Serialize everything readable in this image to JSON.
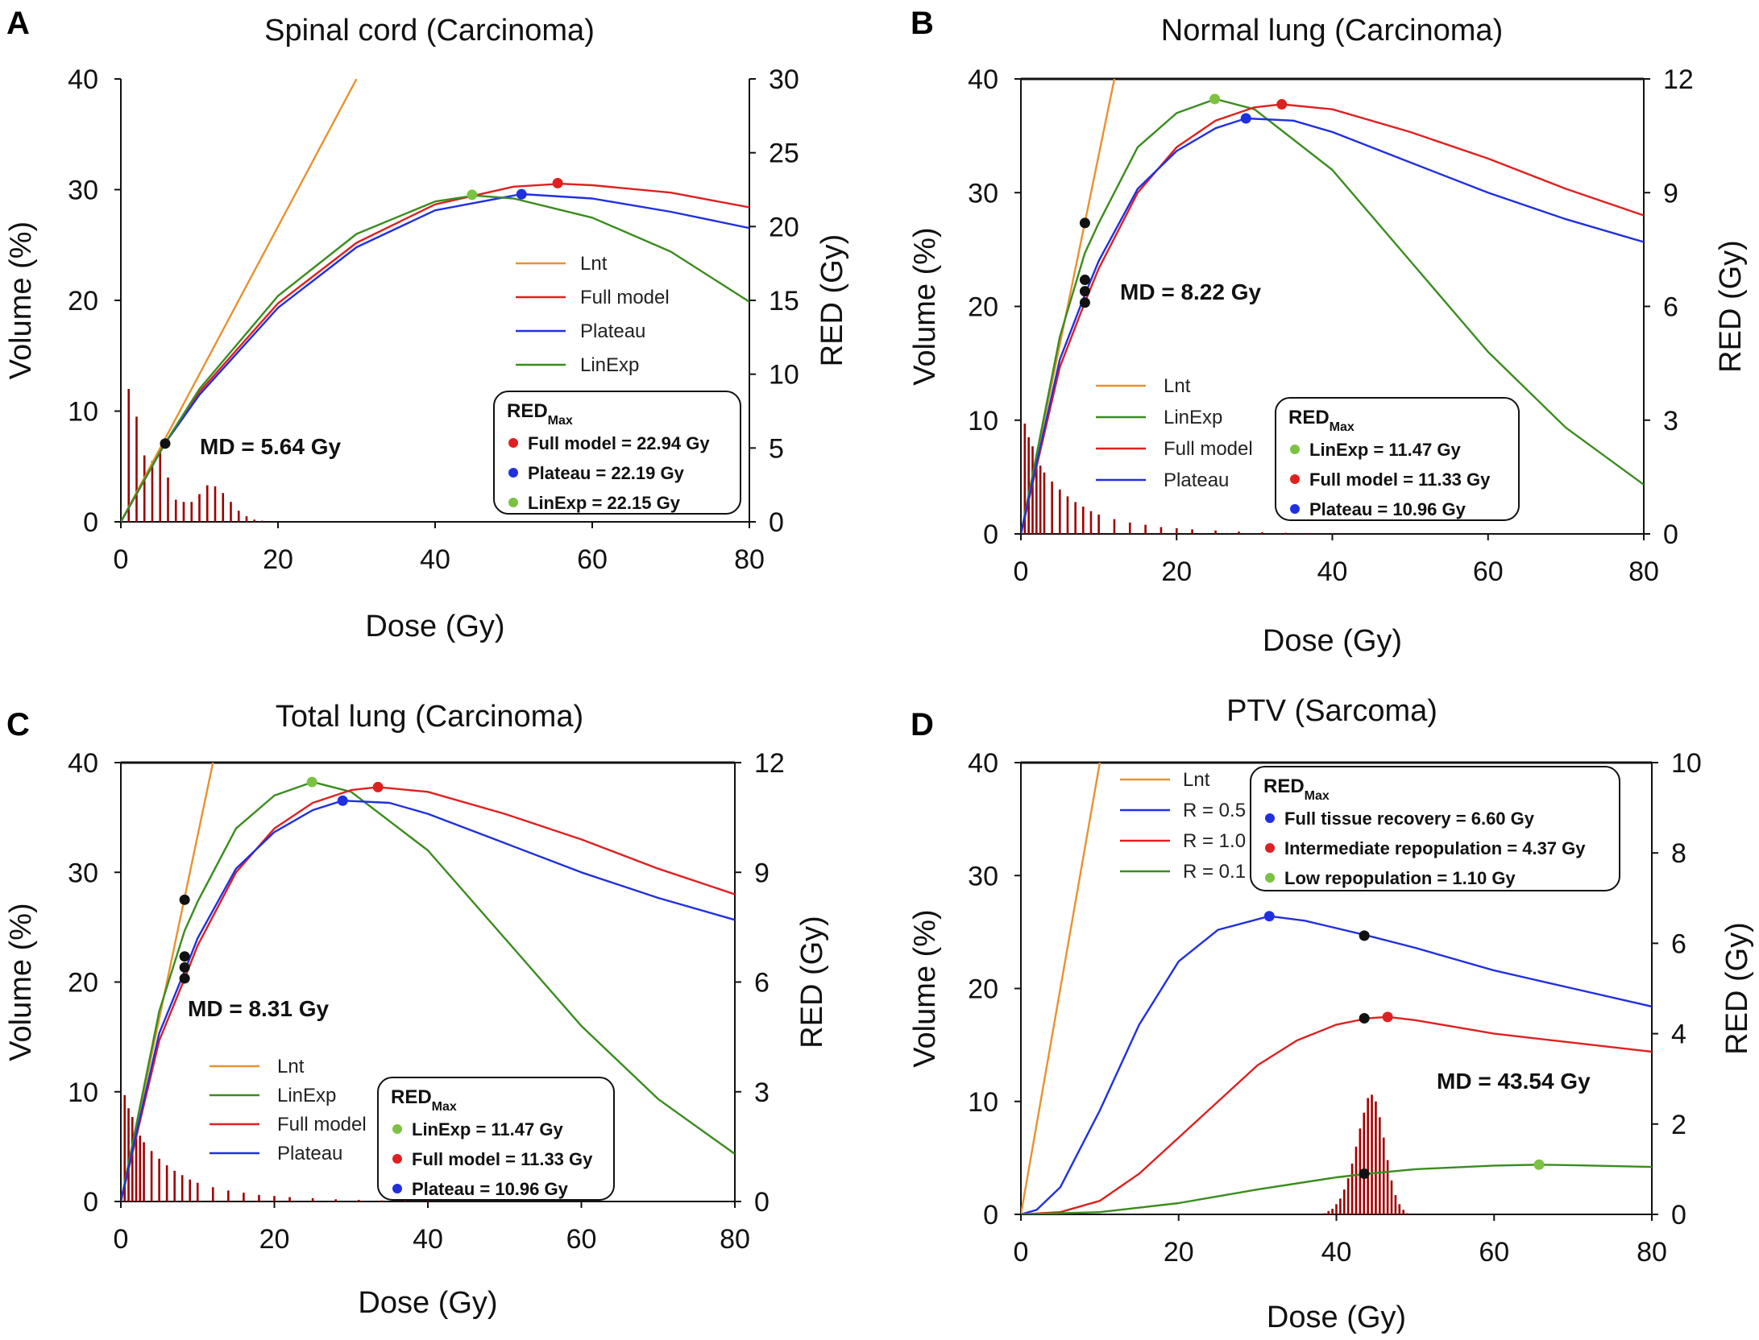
{
  "chart_data": [
    {
      "type": "line",
      "panel_label": "A",
      "title": "Spinal cord (Carcinoma)",
      "xlabel": "Dose (Gy)",
      "ylabel": "Volume (%)",
      "ylabel_right": "RED (Gy)",
      "xlim": [
        0,
        80
      ],
      "ylim": [
        0,
        40
      ],
      "y2lim": [
        0,
        30
      ],
      "x_ticks": [
        "0",
        "20",
        "40",
        "60",
        "80"
      ],
      "y_ticks": [
        "0",
        "10",
        "20",
        "30",
        "40"
      ],
      "y2_ticks": [
        "0",
        "5",
        "10",
        "15",
        "20",
        "25",
        "30"
      ],
      "series": [
        {
          "name": "Lnt",
          "color": "#e8922e",
          "x": [
            0,
            30
          ],
          "y": [
            0,
            30
          ]
        },
        {
          "name": "Full model",
          "color": "#e02020",
          "x": [
            0,
            5.6,
            10,
            20,
            30,
            40,
            50,
            56,
            60,
            70,
            80
          ],
          "y": [
            0,
            5.3,
            8.8,
            14.8,
            18.9,
            21.5,
            22.7,
            22.9,
            22.8,
            22.3,
            21.3
          ]
        },
        {
          "name": "Plateau",
          "color": "#2030e0",
          "x": [
            0,
            5.6,
            10,
            20,
            30,
            40,
            51,
            60,
            70,
            80
          ],
          "y": [
            0,
            5.3,
            8.6,
            14.5,
            18.6,
            21.1,
            22.2,
            21.9,
            21.0,
            19.9
          ]
        },
        {
          "name": "LinExp",
          "color": "#3a8c1e",
          "x": [
            0,
            5.6,
            10,
            20,
            30,
            40,
            45,
            50,
            60,
            70,
            80
          ],
          "y": [
            0,
            5.3,
            9.0,
            15.3,
            19.5,
            21.7,
            22.1,
            21.9,
            20.6,
            18.3,
            14.9
          ]
        }
      ],
      "histogram": {
        "x": [
          1,
          2,
          3,
          4,
          5,
          6,
          7,
          8,
          9,
          10,
          11,
          12,
          13,
          14,
          15,
          16,
          17,
          18
        ],
        "y": [
          12,
          9.5,
          6,
          5.5,
          6.5,
          4,
          2,
          1.8,
          1.8,
          2.5,
          3.3,
          3.2,
          2.6,
          1.8,
          1.0,
          0.5,
          0.2,
          0.1
        ],
        "color": "#a00000"
      },
      "markers": [
        {
          "x": 55.6,
          "y": 22.94,
          "color": "#e02020"
        },
        {
          "x": 51.0,
          "y": 22.19,
          "color": "#2030e0"
        },
        {
          "x": 44.7,
          "y": 22.15,
          "color": "#7cc242"
        },
        {
          "x": 5.64,
          "y": 5.3,
          "color": "#111111"
        }
      ],
      "legend": [
        "Lnt",
        "Full model",
        "Plateau",
        "LinExp"
      ],
      "red_max": {
        "title": "RED",
        "sub": "Max",
        "items": [
          {
            "color": "#e02020",
            "text": "Full model = 22.94 Gy"
          },
          {
            "color": "#2030e0",
            "text": "Plateau = 22.19 Gy"
          },
          {
            "color": "#7cc242",
            "text": "LinExp = 22.15 Gy"
          }
        ]
      },
      "md_text": "MD = 5.64 Gy"
    },
    {
      "type": "line",
      "panel_label": "B",
      "title": "Normal lung (Carcinoma)",
      "xlabel": "Dose (Gy)",
      "ylabel": "Volume (%)",
      "ylabel_right": "RED (Gy)",
      "xlim": [
        0,
        80
      ],
      "ylim": [
        0,
        40
      ],
      "y2lim": [
        0,
        12
      ],
      "x_ticks": [
        "0",
        "20",
        "40",
        "60",
        "80"
      ],
      "y_ticks": [
        "0",
        "10",
        "20",
        "30",
        "40"
      ],
      "y2_ticks": [
        "0",
        "3",
        "6",
        "9",
        "12"
      ],
      "series": [
        {
          "name": "Lnt",
          "color": "#e8922e",
          "x": [
            0,
            12
          ],
          "y": [
            0,
            12
          ]
        },
        {
          "name": "LinExp",
          "color": "#3a8c1e",
          "x": [
            0,
            5,
            8.2,
            10,
            15,
            20,
            25,
            30,
            40,
            50,
            60,
            70,
            80
          ],
          "y": [
            0,
            5.2,
            7.4,
            8.2,
            10.2,
            11.1,
            11.47,
            11.2,
            9.6,
            7.2,
            4.8,
            2.8,
            1.3
          ]
        },
        {
          "name": "Full model",
          "color": "#e02020",
          "x": [
            0,
            5,
            8.2,
            10,
            15,
            20,
            25,
            30,
            33.5,
            40,
            50,
            60,
            70,
            80
          ],
          "y": [
            0,
            4.4,
            6.1,
            7.0,
            9.0,
            10.2,
            10.9,
            11.25,
            11.33,
            11.2,
            10.6,
            9.9,
            9.1,
            8.4
          ]
        },
        {
          "name": "Plateau",
          "color": "#2030e0",
          "x": [
            0,
            5,
            8.2,
            10,
            15,
            20,
            25,
            28.9,
            35,
            40,
            50,
            60,
            70,
            80
          ],
          "y": [
            0,
            4.6,
            6.3,
            7.2,
            9.1,
            10.1,
            10.7,
            10.96,
            10.9,
            10.6,
            9.8,
            9.0,
            8.3,
            7.7
          ]
        }
      ],
      "histogram": {
        "x": [
          0.5,
          1,
          1.5,
          2,
          2.5,
          3,
          4,
          5,
          6,
          7,
          8,
          9,
          10,
          12,
          14,
          16,
          18,
          20,
          22,
          25,
          28,
          31,
          34,
          37,
          40
        ],
        "y": [
          9.7,
          8.5,
          7.7,
          6.8,
          6.0,
          5.4,
          4.6,
          3.9,
          3.3,
          2.8,
          2.4,
          2.0,
          1.7,
          1.3,
          1.0,
          0.8,
          0.6,
          0.5,
          0.4,
          0.3,
          0.2,
          0.15,
          0.1,
          0.08,
          0.05
        ],
        "color": "#a00000"
      },
      "markers": [
        {
          "x": 24.9,
          "y": 11.47,
          "color": "#7cc242"
        },
        {
          "x": 33.5,
          "y": 11.33,
          "color": "#e02020"
        },
        {
          "x": 28.9,
          "y": 10.96,
          "color": "#2030e0"
        },
        {
          "x": 8.22,
          "y": 8.2,
          "color": "#111111"
        },
        {
          "x": 8.22,
          "y": 6.7,
          "color": "#111111"
        },
        {
          "x": 8.22,
          "y": 6.4,
          "color": "#111111"
        },
        {
          "x": 8.22,
          "y": 6.1,
          "color": "#111111"
        }
      ],
      "legend": [
        "Lnt",
        "LinExp",
        "Full model",
        "Plateau"
      ],
      "red_max": {
        "title": "RED",
        "sub": "Max",
        "items": [
          {
            "color": "#7cc242",
            "text": "LinExp = 11.47 Gy"
          },
          {
            "color": "#e02020",
            "text": "Full model = 11.33 Gy"
          },
          {
            "color": "#2030e0",
            "text": "Plateau = 10.96 Gy"
          }
        ]
      },
      "md_text": "MD = 8.22 Gy"
    },
    {
      "type": "line",
      "panel_label": "C",
      "title": "Total lung (Carcinoma)",
      "xlabel": "Dose (Gy)",
      "ylabel": "Volume (%)",
      "ylabel_right": "RED (Gy)",
      "xlim": [
        0,
        80
      ],
      "ylim": [
        0,
        40
      ],
      "y2lim": [
        0,
        12
      ],
      "x_ticks": [
        "0",
        "20",
        "40",
        "60",
        "80"
      ],
      "y_ticks": [
        "0",
        "10",
        "20",
        "30",
        "40"
      ],
      "y2_ticks": [
        "0",
        "3",
        "6",
        "9",
        "12"
      ],
      "series": [
        {
          "name": "Lnt",
          "color": "#e8922e",
          "x": [
            0,
            12
          ],
          "y": [
            0,
            12
          ]
        },
        {
          "name": "LinExp",
          "color": "#3a8c1e",
          "x": [
            0,
            5,
            8.3,
            10,
            15,
            20,
            25,
            30,
            40,
            50,
            60,
            70,
            80
          ],
          "y": [
            0,
            5.2,
            7.4,
            8.2,
            10.2,
            11.1,
            11.47,
            11.2,
            9.6,
            7.2,
            4.8,
            2.8,
            1.3
          ]
        },
        {
          "name": "Full model",
          "color": "#e02020",
          "x": [
            0,
            5,
            8.3,
            10,
            15,
            20,
            25,
            30,
            33.5,
            40,
            50,
            60,
            70,
            80
          ],
          "y": [
            0,
            4.4,
            6.1,
            7.0,
            9.0,
            10.2,
            10.9,
            11.25,
            11.33,
            11.2,
            10.6,
            9.9,
            9.1,
            8.4
          ]
        },
        {
          "name": "Plateau",
          "color": "#2030e0",
          "x": [
            0,
            5,
            8.3,
            10,
            15,
            20,
            25,
            28.9,
            35,
            40,
            50,
            60,
            70,
            80
          ],
          "y": [
            0,
            4.6,
            6.3,
            7.2,
            9.1,
            10.1,
            10.7,
            10.96,
            10.9,
            10.6,
            9.8,
            9.0,
            8.3,
            7.7
          ]
        }
      ],
      "histogram": {
        "x": [
          0.5,
          1,
          1.5,
          2,
          2.5,
          3,
          4,
          5,
          6,
          7,
          8,
          9,
          10,
          12,
          14,
          16,
          18,
          20,
          22,
          25,
          28,
          31,
          34,
          37,
          40
        ],
        "y": [
          9.7,
          8.5,
          7.7,
          6.8,
          6.0,
          5.4,
          4.6,
          3.9,
          3.3,
          2.8,
          2.4,
          2.0,
          1.7,
          1.3,
          1.0,
          0.8,
          0.6,
          0.5,
          0.4,
          0.3,
          0.2,
          0.15,
          0.1,
          0.08,
          0.05
        ],
        "color": "#a00000"
      },
      "markers": [
        {
          "x": 24.9,
          "y": 11.47,
          "color": "#7cc242"
        },
        {
          "x": 33.5,
          "y": 11.33,
          "color": "#e02020"
        },
        {
          "x": 28.9,
          "y": 10.96,
          "color": "#2030e0"
        },
        {
          "x": 8.31,
          "y": 8.25,
          "color": "#111111"
        },
        {
          "x": 8.31,
          "y": 6.7,
          "color": "#111111"
        },
        {
          "x": 8.31,
          "y": 6.4,
          "color": "#111111"
        },
        {
          "x": 8.31,
          "y": 6.1,
          "color": "#111111"
        }
      ],
      "legend": [
        "Lnt",
        "LinExp",
        "Full model",
        "Plateau"
      ],
      "red_max": {
        "title": "RED",
        "sub": "Max",
        "items": [
          {
            "color": "#7cc242",
            "text": "LinExp = 11.47 Gy"
          },
          {
            "color": "#e02020",
            "text": "Full model = 11.33 Gy"
          },
          {
            "color": "#2030e0",
            "text": "Plateau = 10.96 Gy"
          }
        ]
      },
      "md_text": "MD = 8.31 Gy"
    },
    {
      "type": "line",
      "panel_label": "D",
      "title": "PTV (Sarcoma)",
      "xlabel": "Dose (Gy)",
      "ylabel": "Volume (%)",
      "ylabel_right": "RED (Gy)",
      "xlim": [
        0,
        80
      ],
      "ylim": [
        0,
        40
      ],
      "y2lim": [
        0,
        10
      ],
      "x_ticks": [
        "0",
        "20",
        "40",
        "60",
        "80"
      ],
      "y_ticks": [
        "0",
        "10",
        "20",
        "30",
        "40"
      ],
      "y2_ticks": [
        "0",
        "2",
        "4",
        "6",
        "8",
        "10"
      ],
      "series": [
        {
          "name": "Lnt",
          "color": "#e8922e",
          "x": [
            0,
            10
          ],
          "y": [
            0,
            10
          ]
        },
        {
          "name": "R = 0.5",
          "color": "#2030e0",
          "x": [
            0,
            2,
            5,
            10,
            15,
            20,
            25,
            31.5,
            36,
            44,
            50,
            60,
            70,
            80
          ],
          "y": [
            0,
            0.1,
            0.6,
            2.3,
            4.2,
            5.6,
            6.3,
            6.6,
            6.5,
            6.17,
            5.9,
            5.4,
            5.0,
            4.6
          ]
        },
        {
          "name": "R = 1.0",
          "color": "#e02020",
          "x": [
            0,
            5,
            10,
            15,
            20,
            25,
            30,
            35,
            40,
            44,
            46.5,
            50,
            60,
            70,
            80
          ],
          "y": [
            0,
            0.05,
            0.3,
            0.9,
            1.7,
            2.5,
            3.3,
            3.85,
            4.2,
            4.34,
            4.37,
            4.3,
            4.0,
            3.8,
            3.6
          ]
        },
        {
          "name": "R = 0.1",
          "color": "#3a8c1e",
          "x": [
            0,
            10,
            20,
            30,
            40,
            44,
            50,
            60,
            65.7,
            70,
            80
          ],
          "y": [
            0,
            0.05,
            0.25,
            0.55,
            0.82,
            0.9,
            1.0,
            1.08,
            1.1,
            1.09,
            1.05
          ]
        }
      ],
      "histogram": {
        "x": [
          38.5,
          39,
          39.5,
          40,
          40.5,
          41,
          41.5,
          42,
          42.5,
          43,
          43.5,
          44,
          44.5,
          45,
          45.5,
          46,
          46.5,
          47,
          47.5,
          48,
          48.5,
          49
        ],
        "y": [
          0.1,
          0.3,
          0.5,
          0.9,
          1.4,
          2.2,
          3.2,
          4.5,
          6.0,
          7.6,
          9.0,
          10.3,
          10.6,
          10.0,
          8.6,
          6.8,
          4.8,
          3.0,
          1.7,
          0.9,
          0.4,
          0.1
        ],
        "color": "#a00000"
      },
      "markers": [
        {
          "x": 31.5,
          "y": 6.6,
          "color": "#2030e0"
        },
        {
          "x": 46.5,
          "y": 4.37,
          "color": "#e02020"
        },
        {
          "x": 65.7,
          "y": 1.1,
          "color": "#7cc242"
        },
        {
          "x": 43.54,
          "y": 6.17,
          "color": "#111111"
        },
        {
          "x": 43.54,
          "y": 4.34,
          "color": "#111111"
        },
        {
          "x": 43.54,
          "y": 0.9,
          "color": "#111111"
        }
      ],
      "legend": [
        "Lnt",
        "R = 0.5",
        "R = 1.0",
        "R = 0.1"
      ],
      "red_max": {
        "title": "RED",
        "sub": "Max",
        "items": [
          {
            "color": "#2030e0",
            "text": "Full tissue recovery = 6.60 Gy"
          },
          {
            "color": "#e02020",
            "text": "Intermediate repopulation = 4.37 Gy"
          },
          {
            "color": "#7cc242",
            "text": "Low repopulation = 1.10 Gy"
          }
        ]
      },
      "md_text": "MD = 43.54 Gy"
    }
  ]
}
